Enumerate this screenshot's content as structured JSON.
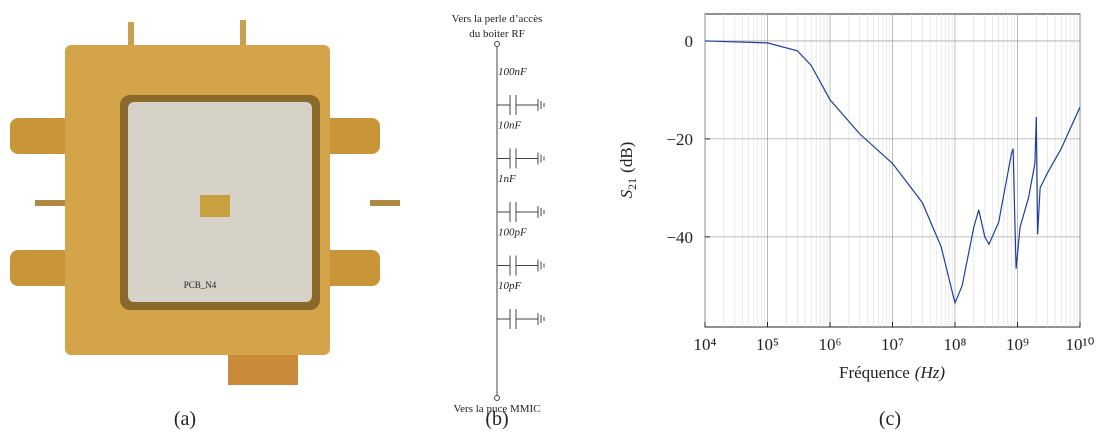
{
  "figure": {
    "captions": [
      "(a)",
      "(b)",
      "(c)"
    ],
    "schematic": {
      "top_label": [
        "Vers la perle d’accès",
        "du boiter RF"
      ],
      "capacitors": [
        "100nF",
        "10nF",
        "1nF",
        "100pF",
        "10pF"
      ],
      "bottom_label": "Vers la puce MMIC"
    },
    "photo": {
      "pcb_label": "PCB_N4"
    }
  },
  "chart_data": {
    "type": "line",
    "ylabel": {
      "symbol": "S",
      "subscript": "21",
      "unit": "(dB)"
    },
    "xlabel": {
      "text": "Fréquence",
      "unit": "(Hz)"
    },
    "log_x": true,
    "grid": true,
    "minor_grid": true,
    "xlim": [
      10000,
      10000000000
    ],
    "xticks": [
      {
        "value": 10000,
        "label": "10⁴"
      },
      {
        "value": 100000,
        "label": "10⁵"
      },
      {
        "value": 1000000,
        "label": "10⁶"
      },
      {
        "value": 10000000,
        "label": "10⁷"
      },
      {
        "value": 100000000,
        "label": "10⁸"
      },
      {
        "value": 1000000000,
        "label": "10⁹"
      },
      {
        "value": 10000000000,
        "label": "10¹⁰"
      }
    ],
    "ylim": [
      -58.4,
      5.5
    ],
    "yticks": [
      {
        "value": -40,
        "label": "−40"
      },
      {
        "value": -20,
        "label": "−20"
      },
      0
    ],
    "x": [
      10000,
      100000,
      300000,
      500000,
      1000000,
      3000000,
      10000000,
      30000000,
      60000000,
      100000000,
      130000000,
      200000000,
      240000000,
      300000000,
      350000000,
      500000000,
      800000000,
      850000000,
      900000000,
      950000000,
      1100000000,
      1500000000,
      1900000000,
      2000000000,
      2100000000,
      2300000000,
      3000000000,
      5000000000,
      10000000000
    ],
    "series": [
      {
        "color": "#1f3f9f",
        "values": [
          0,
          -0.4,
          -2,
          -5,
          -12,
          -19,
          -25,
          -33,
          -42,
          -53.5,
          -50,
          -38,
          -34.5,
          -40,
          -41.5,
          -37,
          -23,
          -22,
          -35,
          -46.5,
          -38,
          -32,
          -25,
          -15.5,
          -39.5,
          -30,
          -27,
          -22,
          -13.5
        ]
      }
    ]
  }
}
